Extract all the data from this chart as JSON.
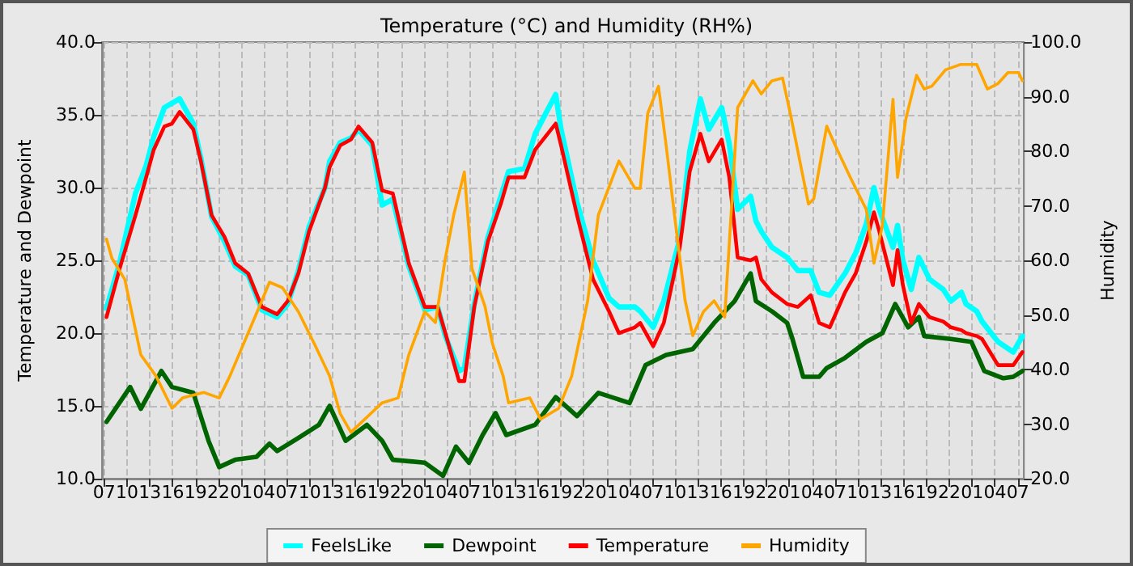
{
  "chart_data": {
    "type": "line",
    "title": "Temperature (°C) and Humidity (RH%)",
    "ylabel": "Temperature and Dewpoint",
    "y2label": "Humidity",
    "x": [
      "--01-01T07:18",
      "--01-01T09:00",
      "--01-01T11:06",
      "--01-01T12:30",
      "--01-01T13:30",
      "--01-01T14:54",
      "--01-01T15:54",
      "--01-01T16:54",
      "--01-01T18:42",
      "--01-01T19:42",
      "--01-01T21:06",
      "--01-01T22:48",
      "--01-02T00:12",
      "--01-02T01:54",
      "--01-02T03:42",
      "--01-02T05:42",
      "--01-02T07:06",
      "--01-02T08:30",
      "--01-02T09:54",
      "--01-02T12:00",
      "--01-02T12:36",
      "--01-02T14:00",
      "--01-02T15:24",
      "--01-02T16:24",
      "--01-02T18:12",
      "--01-02T19:30",
      "--01-02T20:54",
      "--01-02T23:00",
      "--01-03T01:06",
      "--01-03T02:48",
      "--01-03T03:48",
      "--01-03T05:36",
      "--01-03T06:18",
      "--01-03T07:36",
      "--01-03T09:24",
      "--01-03T11:06",
      "--01-03T12:06",
      "--01-03T14:12",
      "--01-03T15:36",
      "--01-03T18:18",
      "--01-03T19:00",
      "--01-03T21:06",
      "--01-03T23:12",
      "--01-04T01:18",
      "--01-04T02:36",
      "--01-04T04:42",
      "--01-04T05:24",
      "--01-04T07:06",
      "--01-04T08:30",
      "--01-04T10:36",
      "--01-04T11:54",
      "--01-04T13:18",
      "--01-04T14:24",
      "--01-04T16:06",
      "--01-04T17:06",
      "--01-04T18:12",
      "--01-04T19:54",
      "--01-04T20:36",
      "--01-04T21:18",
      "--01-04T22:42",
      "--01-05T00:42",
      "--01-05T02:06",
      "--01-05T03:48",
      "--01-05T04:54",
      "--01-05T06:18",
      "--01-05T08:18",
      "--01-05T09:42",
      "--01-05T11:06",
      "--01-05T12:06",
      "--01-05T12:48",
      "--01-05T14:36",
      "--01-05T15:12",
      "--01-05T15:54",
      "--01-05T17:00",
      "--01-05T18:00",
      "--01-05T19:24",
      "--01-05T21:12",
      "--01-05T22:12",
      "--01-05T23:36",
      "--01-06T00:12",
      "--01-06T01:36",
      "--01-06T02:18",
      "--01-06T04:24",
      "--01-06T06:24",
      "--01-06T07:36"
    ],
    "series": [
      {
        "name": "FeelsLike",
        "color": "#00ffff",
        "values": [
          21.7,
          24.8,
          29.6,
          31.5,
          33.5,
          35.5,
          35.8,
          36.1,
          34.4,
          32.0,
          28.0,
          26.3,
          24.6,
          24.0,
          21.6,
          21.1,
          22.0,
          24.3,
          27.3,
          30.0,
          31.8,
          33.1,
          33.4,
          34.0,
          32.9,
          28.8,
          29.2,
          24.6,
          21.6,
          21.8,
          19.8,
          17.4,
          17.6,
          22.0,
          26.6,
          29.4,
          31.1,
          31.3,
          33.7,
          36.4,
          34.0,
          29.0,
          25.0,
          22.4,
          21.8,
          21.8,
          21.5,
          20.4,
          22.2,
          26.5,
          32.5,
          36.1,
          34.0,
          35.5,
          33.0,
          28.5,
          29.4,
          27.7,
          27.0,
          25.9,
          25.2,
          24.3,
          24.3,
          22.8,
          22.6,
          24.1,
          25.5,
          27.5,
          30.0,
          28.5,
          25.9,
          27.4,
          25.0,
          23.0,
          25.2,
          23.7,
          23.0,
          22.2,
          22.8,
          22.0,
          21.5,
          20.8,
          19.4,
          18.7,
          19.8
        ]
      },
      {
        "name": "Dewpoint",
        "color": "#006400",
        "x": [
          "--01-01T07:18",
          "--01-01T10:24",
          "--01-01T11:48",
          "--01-01T14:30",
          "--01-01T15:54",
          "--01-01T18:42",
          "--01-01T20:42",
          "--01-01T22:06",
          "--01-02T00:12",
          "--01-02T03:00",
          "--01-02T04:42",
          "--01-02T05:42",
          "--01-02T08:30",
          "--01-02T11:12",
          "--01-02T12:36",
          "--01-02T14:42",
          "--01-02T17:30",
          "--01-02T19:30",
          "--01-02T20:54",
          "--01-03T01:06",
          "--01-03T03:30",
          "--01-03T05:12",
          "--01-03T06:54",
          "--01-03T08:42",
          "--01-03T10:24",
          "--01-03T11:48",
          "--01-03T15:36",
          "--01-03T18:18",
          "--01-03T21:06",
          "--01-03T23:54",
          "--01-04T04:00",
          "--01-04T06:06",
          "--01-04T08:48",
          "--01-04T12:18",
          "--01-04T15:06",
          "--01-04T17:48",
          "--01-04T19:54",
          "--01-04T20:36",
          "--01-04T22:42",
          "--01-05T00:42",
          "--01-05T01:24",
          "--01-05T02:48",
          "--01-05T04:54",
          "--01-05T05:54",
          "--01-05T08:18",
          "--01-05T11:06",
          "--01-05T13:12",
          "--01-05T14:54",
          "--01-05T16:36",
          "--01-05T18:00",
          "--01-05T18:42",
          "--01-05T22:12",
          "--01-06T00:54",
          "--01-06T02:36",
          "--01-06T05:06",
          "--01-06T06:24",
          "--01-06T07:36"
        ],
        "values": [
          13.9,
          16.3,
          14.8,
          17.4,
          16.3,
          15.9,
          12.6,
          10.8,
          11.3,
          11.5,
          12.4,
          11.9,
          12.8,
          13.7,
          15.0,
          12.6,
          13.7,
          12.6,
          11.3,
          11.1,
          10.2,
          12.2,
          11.1,
          13.0,
          14.5,
          13.0,
          13.7,
          15.6,
          14.3,
          15.9,
          15.2,
          17.8,
          18.5,
          18.9,
          20.7,
          22.2,
          24.1,
          22.2,
          21.5,
          20.7,
          19.6,
          17.0,
          17.0,
          17.6,
          18.3,
          19.4,
          20.0,
          22.0,
          20.4,
          21.1,
          19.8,
          19.6,
          19.4,
          17.4,
          16.9,
          17.0,
          17.4
        ]
      },
      {
        "name": "Temperature",
        "color": "#ff0000",
        "values": [
          21.1,
          24.4,
          28.1,
          30.7,
          32.6,
          34.2,
          34.4,
          35.2,
          34.0,
          31.8,
          28.1,
          26.6,
          24.8,
          24.1,
          21.8,
          21.3,
          22.2,
          24.1,
          27.0,
          30.0,
          31.4,
          32.9,
          33.3,
          34.2,
          33.1,
          29.8,
          29.6,
          24.8,
          21.8,
          21.8,
          20.0,
          16.7,
          16.7,
          21.8,
          26.3,
          28.9,
          30.7,
          30.7,
          32.6,
          34.4,
          32.9,
          28.1,
          23.7,
          21.5,
          20.0,
          20.4,
          20.7,
          19.1,
          20.7,
          25.9,
          31.1,
          33.7,
          31.8,
          33.3,
          30.7,
          25.2,
          25.0,
          25.2,
          23.7,
          22.8,
          22.0,
          21.8,
          22.6,
          20.7,
          20.4,
          22.8,
          24.1,
          26.3,
          28.3,
          27.0,
          23.3,
          25.7,
          23.3,
          20.7,
          22.0,
          21.1,
          20.8,
          20.4,
          20.2,
          20.0,
          19.8,
          19.6,
          17.8,
          17.8,
          18.7
        ]
      },
      {
        "name": "Humidity",
        "color": "#ffa500",
        "axis": "y2",
        "x": [
          "--01-01T07:18",
          "--01-01T08:00",
          "--01-01T09:42",
          "--01-01T11:48",
          "--01-01T13:48",
          "--01-01T15:54",
          "--01-01T17:18",
          "--01-01T20:06",
          "--01-01T22:06",
          "--01-01T23:30",
          "--01-02T01:36",
          "--01-02T03:42",
          "--01-02T04:42",
          "--01-02T06:24",
          "--01-02T08:30",
          "--01-02T10:36",
          "--01-02T12:36",
          "--01-02T14:00",
          "--01-02T15:24",
          "--01-02T19:30",
          "--01-02T21:36",
          "--01-02T23:00",
          "--01-03T01:06",
          "--01-03T02:30",
          "--01-03T03:48",
          "--01-03T04:54",
          "--01-03T06:18",
          "--01-03T07:18",
          "--01-03T09:00",
          "--01-03T10:00",
          "--01-03T11:24",
          "--01-03T12:06",
          "--01-03T14:54",
          "--01-03T16:18",
          "--01-03T18:42",
          "--01-03T20:24",
          "--01-03T22:30",
          "--01-03T23:54",
          "--01-04T02:36",
          "--01-04T04:42",
          "--01-04T05:24",
          "--01-04T06:24",
          "--01-04T07:48",
          "--01-04T08:48",
          "--01-04T09:54",
          "--01-04T11:18",
          "--01-04T12:18",
          "--01-04T13:42",
          "--01-04T15:06",
          "--01-04T16:30",
          "--01-04T18:12",
          "--01-04T20:12",
          "--01-04T21:18",
          "--01-04T22:42",
          "--01-05T00:06",
          "--01-05T01:06",
          "--01-05T03:30",
          "--01-05T04:12",
          "--01-05T05:54",
          "--01-05T07:00",
          "--01-05T09:00",
          "--01-05T11:06",
          "--01-05T12:06",
          "--01-05T13:12",
          "--01-05T14:36",
          "--01-05T15:12",
          "--01-05T16:18",
          "--01-05T17:42",
          "--01-05T18:42",
          "--01-05T19:42",
          "--01-05T21:30",
          "--01-05T23:30",
          "--01-06T01:36",
          "--01-06T03:00",
          "--01-06T04:24",
          "--01-06T05:42",
          "--01-06T07:06",
          "--01-06T07:36"
        ],
        "values": [
          63.9,
          60.4,
          56.5,
          42.7,
          38.8,
          32.9,
          34.8,
          35.8,
          34.8,
          38.8,
          45.7,
          52.6,
          56.0,
          55.0,
          50.6,
          44.7,
          38.8,
          31.9,
          28.5,
          33.9,
          34.8,
          42.7,
          50.6,
          48.6,
          60.4,
          68.3,
          76.2,
          58.5,
          51.6,
          44.7,
          38.8,
          33.9,
          34.8,
          30.9,
          32.9,
          38.8,
          52.6,
          68.3,
          78.2,
          73.2,
          73.2,
          87.0,
          91.9,
          81.1,
          68.3,
          52.6,
          46.2,
          50.6,
          52.6,
          49.6,
          88.0,
          92.9,
          90.5,
          92.9,
          93.4,
          87.0,
          70.3,
          71.3,
          84.6,
          81.1,
          75.2,
          69.3,
          59.5,
          66.3,
          89.5,
          75.2,
          86.0,
          93.9,
          91.4,
          91.9,
          94.9,
          95.9,
          95.9,
          91.4,
          92.4,
          94.4,
          94.4,
          92.9
        ]
      }
    ],
    "xlim": [
      "--01-01T06:42",
      "--01-06T07:48"
    ],
    "xticks": [
      {
        "value": "--01-01T07:00",
        "label": "07"
      },
      {
        "value": "--01-01T10:00",
        "label": "10"
      },
      {
        "value": "--01-01T13:00",
        "label": "13"
      },
      {
        "value": "--01-01T16:00",
        "label": "16"
      },
      {
        "value": "--01-01T19:00",
        "label": "19"
      },
      {
        "value": "--01-01T22:00",
        "label": "22"
      },
      {
        "value": "--01-02T01:00",
        "label": "01"
      },
      {
        "value": "--01-02T04:00",
        "label": "04"
      },
      {
        "value": "--01-02T07:00",
        "label": "07"
      },
      {
        "value": "--01-02T10:00",
        "label": "10"
      },
      {
        "value": "--01-02T13:00",
        "label": "13"
      },
      {
        "value": "--01-02T16:00",
        "label": "16"
      },
      {
        "value": "--01-02T19:00",
        "label": "19"
      },
      {
        "value": "--01-02T22:00",
        "label": "22"
      },
      {
        "value": "--01-03T01:00",
        "label": "01"
      },
      {
        "value": "--01-03T04:00",
        "label": "04"
      },
      {
        "value": "--01-03T07:00",
        "label": "07"
      },
      {
        "value": "--01-03T10:00",
        "label": "10"
      },
      {
        "value": "--01-03T13:00",
        "label": "13"
      },
      {
        "value": "--01-03T16:00",
        "label": "16"
      },
      {
        "value": "--01-03T19:00",
        "label": "19"
      },
      {
        "value": "--01-03T22:00",
        "label": "22"
      },
      {
        "value": "--01-04T01:00",
        "label": "01"
      },
      {
        "value": "--01-04T04:00",
        "label": "04"
      },
      {
        "value": "--01-04T07:00",
        "label": "07"
      },
      {
        "value": "--01-04T10:00",
        "label": "10"
      },
      {
        "value": "--01-04T13:00",
        "label": "13"
      },
      {
        "value": "--01-04T16:00",
        "label": "16"
      },
      {
        "value": "--01-04T19:00",
        "label": "19"
      },
      {
        "value": "--01-04T22:00",
        "label": "22"
      },
      {
        "value": "--01-05T01:00",
        "label": "01"
      },
      {
        "value": "--01-05T04:00",
        "label": "04"
      },
      {
        "value": "--01-05T07:00",
        "label": "07"
      },
      {
        "value": "--01-05T10:00",
        "label": "10"
      },
      {
        "value": "--01-05T13:00",
        "label": "13"
      },
      {
        "value": "--01-05T16:00",
        "label": "16"
      },
      {
        "value": "--01-05T19:00",
        "label": "19"
      },
      {
        "value": "--01-05T22:00",
        "label": "22"
      },
      {
        "value": "--01-06T01:00",
        "label": "01"
      },
      {
        "value": "--01-06T04:00",
        "label": "04"
      },
      {
        "value": "--01-06T07:00",
        "label": "07"
      }
    ],
    "ylim": [
      10,
      40
    ],
    "yticks": [
      {
        "value": 10,
        "label": "10.0"
      },
      {
        "value": 15,
        "label": "15.0"
      },
      {
        "value": 20,
        "label": "20.0"
      },
      {
        "value": 25,
        "label": "25.0"
      },
      {
        "value": 30,
        "label": "30.0"
      },
      {
        "value": 35,
        "label": "35.0"
      },
      {
        "value": 40,
        "label": "40.0"
      }
    ],
    "y2lim": [
      20,
      100
    ],
    "y2ticks": [
      {
        "value": 20,
        "label": "20.0"
      },
      {
        "value": 30,
        "label": "30.0"
      },
      {
        "value": 40,
        "label": "40.0"
      },
      {
        "value": 50,
        "label": "50.0"
      },
      {
        "value": 60,
        "label": "60.0"
      },
      {
        "value": 70,
        "label": "70.0"
      },
      {
        "value": 80,
        "label": "80.0"
      },
      {
        "value": 90,
        "label": "90.0"
      },
      {
        "value": 100,
        "label": "100.0"
      }
    ],
    "grid": true,
    "legend": "bottom",
    "marker": "none",
    "line_style": "solid"
  }
}
